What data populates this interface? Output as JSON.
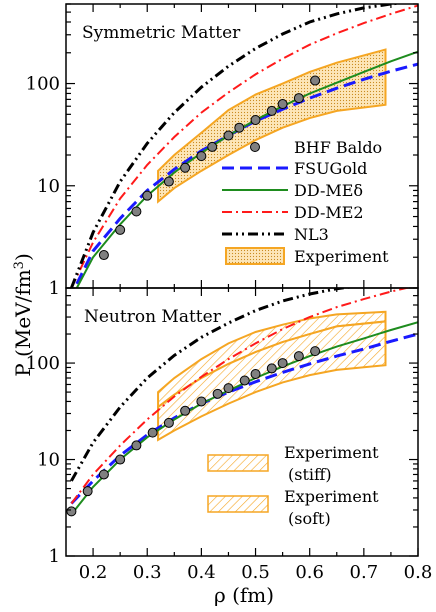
{
  "figure": {
    "ylabel": "P (MeV/fm",
    "ylabel_sup": "3",
    "ylabel_close": ")",
    "xlabel": "ρ (fm)"
  },
  "colors": {
    "bhf": "#808080",
    "fsugold": "#1a1aff",
    "ddmed": "#1e8c1e",
    "ddme2": "#ff1a1a",
    "nl3": "#000000",
    "experiment": "#f5a623"
  },
  "chart_data": [
    {
      "type": "line",
      "panel": "top",
      "annotation": "Symmetric Matter",
      "xlim": [
        0.15,
        0.8
      ],
      "ylim": [
        1,
        600
      ],
      "log_y": true,
      "y_ticks": [
        1,
        10,
        100
      ],
      "y_tick_labels": [
        "1",
        "10",
        "100"
      ],
      "grid": false,
      "legend_position": "bottom-right",
      "series": [
        {
          "name": "BHF Baldo",
          "style": "markers",
          "x": [
            0.22,
            0.25,
            0.28,
            0.3,
            0.34,
            0.37,
            0.4,
            0.42,
            0.45,
            0.47,
            0.5,
            0.53,
            0.55,
            0.58,
            0.61
          ],
          "y": [
            2.1,
            3.7,
            5.6,
            8.0,
            11,
            15,
            19.5,
            24,
            31,
            37,
            44,
            54,
            63,
            72,
            107
          ]
        },
        {
          "name": "FSUGold",
          "style": "dashed",
          "x": [
            0.17,
            0.2,
            0.25,
            0.3,
            0.35,
            0.4,
            0.45,
            0.5,
            0.55,
            0.6,
            0.65,
            0.7,
            0.75,
            0.8
          ],
          "y": [
            1.1,
            2.3,
            4.8,
            9,
            14.5,
            22,
            31,
            43,
            56,
            72,
            90,
            110,
            132,
            155
          ]
        },
        {
          "name": "DD-MEδ",
          "style": "solid",
          "x": [
            0.17,
            0.2,
            0.25,
            0.3,
            0.35,
            0.4,
            0.45,
            0.5,
            0.55,
            0.6,
            0.65,
            0.7,
            0.75,
            0.8
          ],
          "y": [
            1.0,
            2.0,
            4.2,
            8,
            13.5,
            21,
            31,
            44,
            60,
            80,
            102,
            130,
            165,
            205
          ]
        },
        {
          "name": "DD-ME2",
          "style": "dash-dot",
          "x": [
            0.16,
            0.2,
            0.25,
            0.3,
            0.35,
            0.4,
            0.45,
            0.5,
            0.55,
            0.6,
            0.65,
            0.7,
            0.75,
            0.8
          ],
          "y": [
            1.0,
            2.8,
            7.5,
            16,
            30,
            52,
            82,
            123,
            175,
            240,
            310,
            390,
            480,
            580
          ]
        },
        {
          "name": "NL3",
          "style": "dash-dot-dot",
          "x": [
            0.16,
            0.2,
            0.25,
            0.3,
            0.35,
            0.4,
            0.45,
            0.5,
            0.55,
            0.6,
            0.65,
            0.7,
            0.75,
            0.8
          ],
          "y": [
            1.0,
            3.5,
            11,
            26,
            52,
            92,
            148,
            220,
            305,
            400,
            480,
            550,
            600,
            640
          ]
        },
        {
          "name": "Experiment",
          "style": "band",
          "x": [
            0.32,
            0.35,
            0.4,
            0.45,
            0.5,
            0.55,
            0.6,
            0.65,
            0.74
          ],
          "y_low": [
            7,
            9.5,
            14,
            20,
            28,
            37,
            46,
            54,
            62
          ],
          "y_high": [
            14,
            20,
            33,
            55,
            78,
            100,
            130,
            160,
            215
          ]
        }
      ]
    },
    {
      "type": "line",
      "panel": "bottom",
      "annotation": "Neutron Matter",
      "xlim": [
        0.15,
        0.8
      ],
      "ylim": [
        1,
        600
      ],
      "log_y": true,
      "x_ticks": [
        0.2,
        0.3,
        0.4,
        0.5,
        0.6,
        0.7,
        0.8
      ],
      "x_tick_labels": [
        "0.2",
        "0.3",
        "0.4",
        "0.5",
        "0.6",
        "0.7",
        "0.8"
      ],
      "y_ticks": [
        1,
        10,
        100
      ],
      "y_tick_labels": [
        "1",
        "10",
        "100"
      ],
      "grid": false,
      "legend_position": "bottom-right",
      "series": [
        {
          "style": "markers",
          "x": [
            0.16,
            0.19,
            0.22,
            0.25,
            0.28,
            0.31,
            0.34,
            0.37,
            0.4,
            0.43,
            0.45,
            0.48,
            0.5,
            0.53,
            0.55,
            0.58,
            0.61
          ],
          "y": [
            2.9,
            4.7,
            7.0,
            10,
            14,
            19,
            24,
            32,
            40,
            48,
            55,
            66,
            77,
            88,
            100,
            118,
            133
          ]
        },
        {
          "style": "dashed",
          "x": [
            0.16,
            0.2,
            0.25,
            0.3,
            0.35,
            0.4,
            0.45,
            0.5,
            0.55,
            0.6,
            0.65,
            0.7,
            0.75,
            0.8
          ],
          "y": [
            3.5,
            6,
            11,
            18,
            27,
            38,
            50,
            64,
            80,
            98,
            118,
            140,
            168,
            200
          ]
        },
        {
          "style": "solid",
          "x": [
            0.16,
            0.2,
            0.25,
            0.3,
            0.35,
            0.4,
            0.45,
            0.5,
            0.55,
            0.6,
            0.65,
            0.7,
            0.75,
            0.8
          ],
          "y": [
            2.7,
            5.2,
            10,
            17,
            26,
            38,
            52,
            70,
            92,
            118,
            148,
            180,
            220,
            265
          ]
        },
        {
          "style": "dash-dot",
          "x": [
            0.16,
            0.2,
            0.25,
            0.3,
            0.35,
            0.4,
            0.45,
            0.5,
            0.55,
            0.6,
            0.65,
            0.7,
            0.75,
            0.8
          ],
          "y": [
            3.5,
            7,
            14,
            26,
            45,
            72,
            110,
            160,
            225,
            300,
            380,
            460,
            550,
            640
          ]
        },
        {
          "style": "dash-dot-dot",
          "x": [
            0.16,
            0.2,
            0.25,
            0.3,
            0.35,
            0.4,
            0.45,
            0.5,
            0.55,
            0.6,
            0.65,
            0.7,
            0.75,
            0.8
          ],
          "y": [
            6,
            15,
            35,
            70,
            120,
            185,
            260,
            350,
            440,
            520,
            590,
            640,
            680,
            700
          ]
        },
        {
          "name": "Experiment (stiff)",
          "style": "band-hatch",
          "x": [
            0.32,
            0.35,
            0.4,
            0.45,
            0.5,
            0.55,
            0.6,
            0.65,
            0.74
          ],
          "y_low": [
            35,
            47,
            70,
            98,
            130,
            165,
            200,
            240,
            270
          ],
          "y_high": [
            50,
            70,
            110,
            160,
            210,
            250,
            290,
            320,
            340
          ]
        },
        {
          "name": "Experiment (soft)",
          "style": "band-hatch",
          "x": [
            0.32,
            0.35,
            0.4,
            0.45,
            0.5,
            0.55,
            0.6,
            0.65,
            0.74
          ],
          "y_low": [
            16,
            20,
            28,
            38,
            50,
            63,
            75,
            85,
            95
          ],
          "y_high": [
            35,
            47,
            70,
            98,
            130,
            165,
            200,
            240,
            270
          ]
        }
      ]
    }
  ],
  "legend_top": [
    {
      "label": "BHF Baldo"
    },
    {
      "label": "FSUGold"
    },
    {
      "label": "DD-MEδ"
    },
    {
      "label": "DD-ME2"
    },
    {
      "label": "NL3"
    },
    {
      "label": "Experiment"
    }
  ],
  "legend_bottom": [
    {
      "label_line1": "Experiment",
      "label_line2": "(stiff)"
    },
    {
      "label_line1": "Experiment",
      "label_line2": "(soft)"
    }
  ]
}
